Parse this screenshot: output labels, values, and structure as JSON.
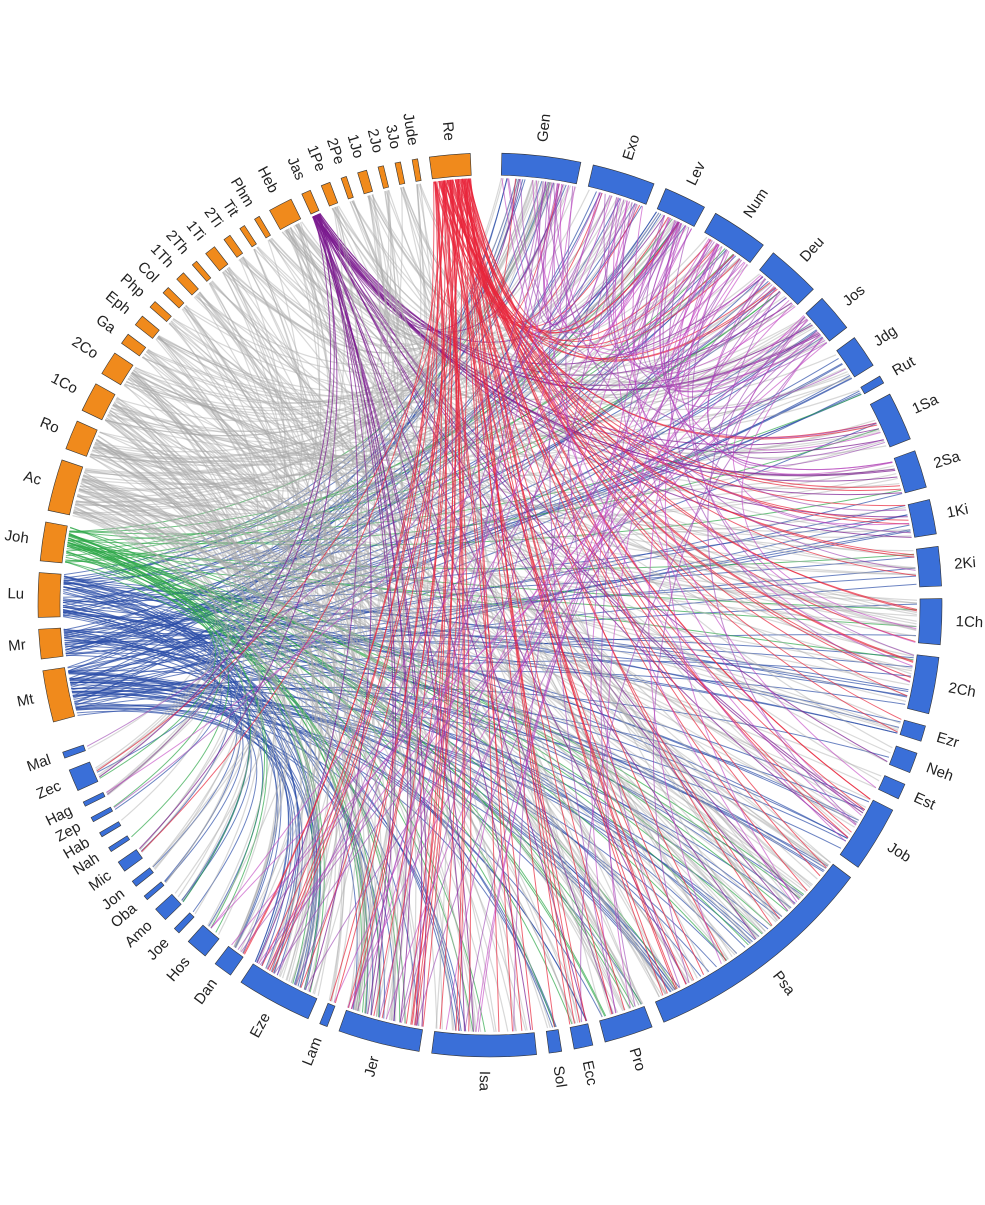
{
  "old_testament": {
    "color": "#3a6fd8",
    "books": [
      "Gen",
      "Exo",
      "Lev",
      "Num",
      "Deu",
      "Jos",
      "Jdg",
      "Rut",
      "1Sa",
      "2Sa",
      "1Ki",
      "2Ki",
      "1Ch",
      "2Ch",
      "Ezr",
      "Neh",
      "Est",
      "Job",
      "Psa",
      "Pro",
      "Ecc",
      "Sol",
      "Isa",
      "Jer",
      "Lam",
      "Eze",
      "Dan",
      "Hos",
      "Joe",
      "Amo",
      "Oba",
      "Jon",
      "Mic",
      "Nah",
      "Hab",
      "Zep",
      "Hag",
      "Zec",
      "Mal"
    ]
  },
  "new_testament": {
    "color": "#f08a1c",
    "books": [
      "Mt",
      "Mr",
      "Lu",
      "Joh",
      "Ac",
      "Ro",
      "1Co",
      "2Co",
      "Ga",
      "Eph",
      "Php",
      "Col",
      "1Th",
      "2Th",
      "1Ti",
      "2Ti",
      "Tit",
      "Phm",
      "Heb",
      "Jas",
      "1Pe",
      "2Pe",
      "1Jo",
      "2Jo",
      "3Jo",
      "Jude",
      "Re"
    ]
  }
}
